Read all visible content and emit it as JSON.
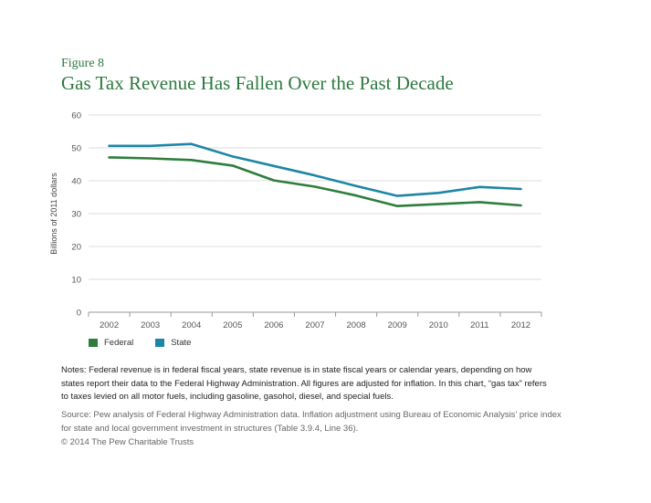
{
  "header": {
    "figure_label": "Figure 8",
    "title": "Gas Tax Revenue Has Fallen Over the Past Decade"
  },
  "chart_data": {
    "type": "line",
    "x": [
      "2002",
      "2003",
      "2004",
      "2005",
      "2006",
      "2007",
      "2008",
      "2009",
      "2010",
      "2011",
      "2012"
    ],
    "series": [
      {
        "name": "Federal",
        "color": "#2e7d3c",
        "values": [
          47.1,
          46.8,
          46.3,
          44.6,
          40.1,
          38.2,
          35.5,
          32.3,
          32.9,
          33.5,
          32.5
        ]
      },
      {
        "name": "State",
        "color": "#1d86a6",
        "values": [
          50.6,
          50.6,
          51.2,
          47.4,
          44.5,
          41.6,
          38.4,
          35.4,
          36.3,
          38.1,
          37.5
        ]
      }
    ],
    "ylabel": "Billions of 2011 dollars",
    "xlabel": "",
    "ylim": [
      0,
      60
    ],
    "yticks": [
      0,
      10,
      20,
      30,
      40,
      50,
      60
    ],
    "grid": true,
    "legend": "bottom-left"
  },
  "footer": {
    "notes": "Notes: Federal revenue is in federal fiscal years, state revenue is in state fiscal years or calendar years, depending on how states report their data to the Federal Highway Administration. All figures are adjusted for inflation. In this chart, “gas tax” refers to taxes levied on all motor fuels, including gasoline, gasohol, diesel, and special fuels.",
    "source": "Source: Pew analysis of Federal Highway Administration data. Inflation adjustment using Bureau of Economic Analysis’ price index for state and local government investment in structures (Table 3.9.4, Line 36).",
    "copyright": "© 2014 The Pew Charitable Trusts"
  }
}
